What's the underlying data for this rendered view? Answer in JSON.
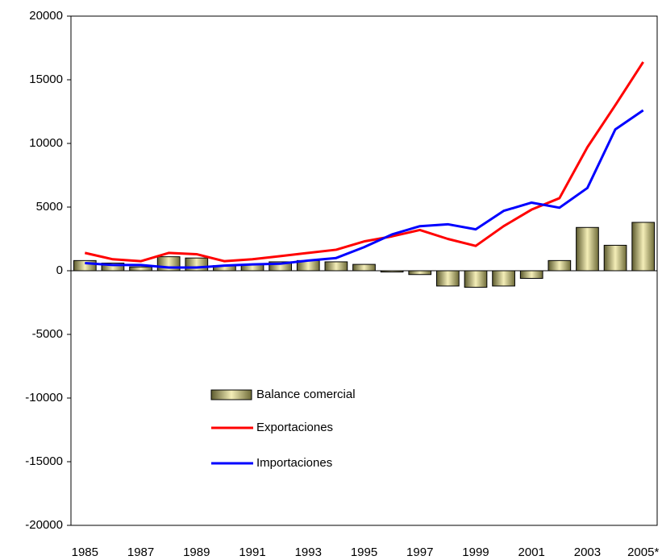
{
  "chart_data": {
    "type": "bar",
    "categories": [
      "1985",
      null,
      "1987",
      null,
      "1989",
      null,
      "1991",
      null,
      "1993",
      null,
      "1995",
      null,
      "1997",
      null,
      "1999",
      null,
      "2001",
      null,
      "2003",
      null,
      "2005*"
    ],
    "series": [
      {
        "name": "Balance comercial",
        "type": "bar",
        "color": "#e6dd9a",
        "values": [
          800,
          600,
          300,
          1100,
          1000,
          400,
          500,
          700,
          800,
          700,
          500,
          -100,
          -300,
          -1200,
          -1300,
          -1200,
          -600,
          800,
          3400,
          2000,
          3800
        ]
      },
      {
        "name": "Exportaciones",
        "type": "line",
        "color": "#ff0000",
        "values": [
          1400,
          900,
          750,
          1400,
          1300,
          750,
          900,
          1150,
          1400,
          1650,
          2300,
          2700,
          3200,
          2500,
          1950,
          3500,
          4800,
          5700,
          9700,
          13000,
          16400
        ]
      },
      {
        "name": "Importaciones",
        "type": "line",
        "color": "#0000ff",
        "values": [
          600,
          450,
          450,
          250,
          250,
          400,
          500,
          550,
          800,
          1000,
          1850,
          2850,
          3500,
          3650,
          3250,
          4700,
          5350,
          4950,
          6500,
          11100,
          12600
        ]
      }
    ],
    "ylim": [
      -20000,
      20000
    ],
    "yticks": [
      -20000,
      -15000,
      -10000,
      -5000,
      0,
      5000,
      10000,
      15000,
      20000
    ]
  }
}
